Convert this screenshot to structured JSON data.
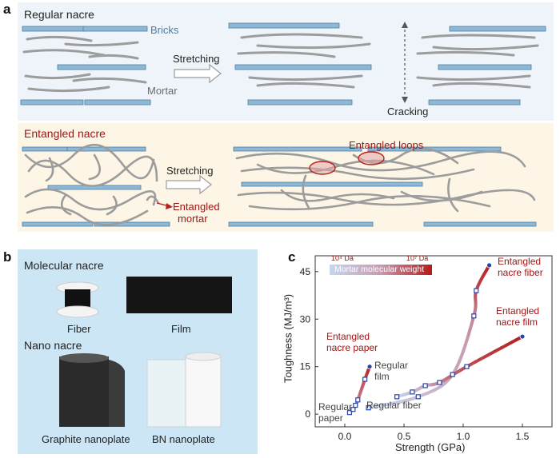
{
  "panel_a": {
    "letter": "a",
    "regular": {
      "title": "Regular nacre",
      "bricks_label": "Bricks",
      "mortar_label": "Mortar",
      "stretching_label": "Stretching",
      "cracking_label": "Cracking"
    },
    "entangled": {
      "title": "Entangled nacre",
      "stretching_label": "Stretching",
      "mortar_label_line1": "Entangled",
      "mortar_label_line2": "mortar",
      "loops_label": "Entangled loops"
    }
  },
  "panel_b": {
    "letter": "b",
    "molecular_title": "Molecular nacre",
    "fiber_label": "Fiber",
    "film_label": "Film",
    "nano_title": "Nano nacre",
    "graphite_label": "Graphite nanoplate",
    "bn_label": "BN nanoplate"
  },
  "panel_c": {
    "letter": "c",
    "colorbar": {
      "low": "10⁴ Da",
      "high": "10⁷ Da",
      "label": "Mortar molecular weight"
    },
    "annotations": {
      "regular_paper_1": "Regular",
      "regular_paper_2": "paper",
      "regular_fiber": "Regular fiber",
      "regular_film_1": "Regular",
      "regular_film_2": "film",
      "ent_paper_1": "Entangled",
      "ent_paper_2": "nacre paper",
      "ent_fiber_1": "Entangled",
      "ent_fiber_2": "nacre fiber",
      "ent_film_1": "Entangled",
      "ent_film_2": "nacre film"
    }
  },
  "chart_data": {
    "type": "line",
    "title": "",
    "xlabel": "Strength (GPa)",
    "ylabel": "Toughness (MJ/m³)",
    "xlim": [
      -0.25,
      1.75
    ],
    "ylim": [
      -4,
      50
    ],
    "xticks": [
      "0.0",
      "0.5",
      "1.0",
      "1.5"
    ],
    "yticks": [
      "0",
      "15",
      "30",
      "45"
    ],
    "series": [
      {
        "name": "Regular paper → Entangled nacre paper",
        "x": [
          0.04,
          0.07,
          0.09,
          0.11,
          0.17,
          0.21
        ],
        "y": [
          0.5,
          1.5,
          2.8,
          4.5,
          11,
          15
        ]
      },
      {
        "name": "Regular fiber → Entangled nacre fiber",
        "x": [
          0.2,
          0.62,
          0.91,
          1.09,
          1.11,
          1.22
        ],
        "y": [
          2,
          5.5,
          12.5,
          31,
          39,
          47
        ]
      },
      {
        "name": "Regular film → Entangled nacre film",
        "x": [
          0.44,
          0.57,
          0.68,
          0.8,
          1.03,
          1.5
        ],
        "y": [
          5.5,
          7,
          9,
          10,
          15,
          24.5
        ]
      }
    ]
  }
}
